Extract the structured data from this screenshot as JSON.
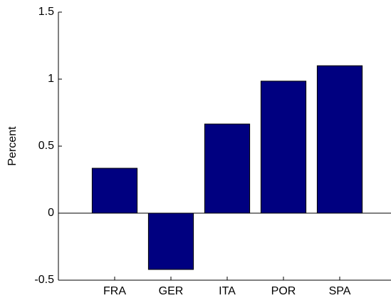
{
  "chart_data": {
    "type": "bar",
    "y_label": "Percent",
    "categories": [
      "FRA",
      "GER",
      "ITA",
      "POR",
      "SPA"
    ],
    "values": [
      0.335,
      -0.42,
      0.665,
      0.985,
      1.1
    ],
    "color": "#000080",
    "ylim": [
      -0.5,
      1.5
    ],
    "yticks": [
      -0.5,
      0,
      0.5,
      1,
      1.5
    ]
  }
}
